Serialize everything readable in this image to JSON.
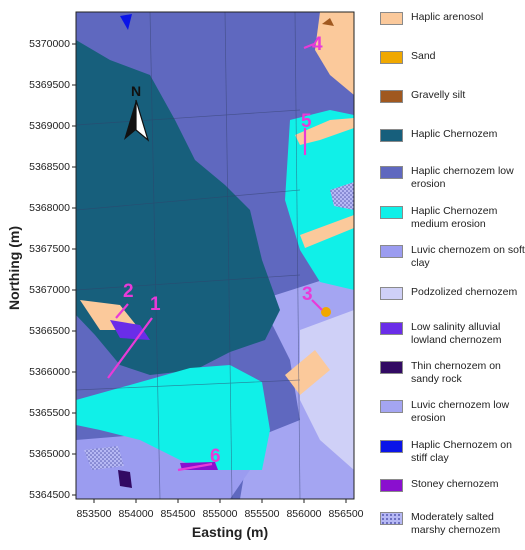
{
  "map": {
    "y_axis_title": "Northing (m)",
    "x_axis_title": "Easting (m)",
    "north_label": "N",
    "y_ticks": [
      "5370000",
      "5369500",
      "5369000",
      "5368500",
      "5368000",
      "5367500",
      "5367000",
      "5366500",
      "5366000",
      "5365500",
      "5365000",
      "5364500"
    ],
    "x_ticks": [
      "853500",
      "854000",
      "854500",
      "855000",
      "855500",
      "856000",
      "856500"
    ],
    "sites": [
      "1",
      "2",
      "3",
      "4",
      "5",
      "6"
    ]
  },
  "legend": [
    {
      "label": "Haplic arenosol",
      "color": "#fbc99b"
    },
    {
      "label": "Sand",
      "color": "#f0a800"
    },
    {
      "label": "Gravelly silt",
      "color": "#a0581f"
    },
    {
      "label": "Haplic Chernozem",
      "color": "#175f7c"
    },
    {
      "label": "Haplic chernozem low erosion",
      "color": "#5f68bf"
    },
    {
      "label": "Haplic Chernozem medium erosion",
      "color": "#10f0e8"
    },
    {
      "label": "Luvic chernozem on soft clay",
      "color": "#9b9cf0"
    },
    {
      "label": "Podzolized chernozem",
      "color": "#cfd0f7"
    },
    {
      "label": "Low salinity alluvial lowland chernozem",
      "color": "#6a2de8"
    },
    {
      "label": "Thin chernozem on sandy rock",
      "color": "#320a63"
    },
    {
      "label": "Luvic chernozem low erosion",
      "color": "#a4a5f2"
    },
    {
      "label": "Haplic Chernozem on stiff clay",
      "color": "#0a14e8"
    },
    {
      "label": "Stoney chernozem",
      "color": "#8a0fcf"
    },
    {
      "label": "Moderately salted marshy chernozem",
      "color": "#b6b8f4"
    }
  ]
}
